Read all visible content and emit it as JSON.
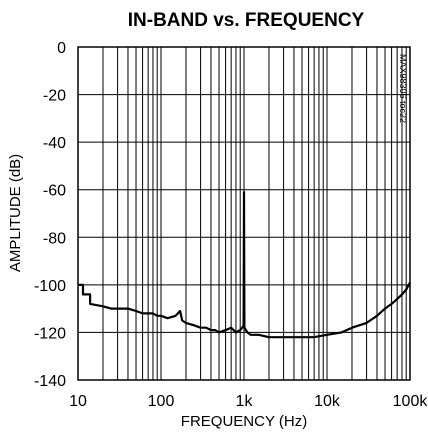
{
  "chart_data": {
    "type": "line",
    "title": "IN-BAND vs. FREQUENCY",
    "xlabel": "FREQUENCY (Hz)",
    "ylabel": "AMPLITUDE (dB)",
    "figure_id": "MAX98306 toc22",
    "xscale": "log",
    "xlim": [
      10,
      100000
    ],
    "ylim": [
      -140,
      0
    ],
    "grid": true,
    "xticks": [
      10,
      100,
      1000,
      10000,
      100000
    ],
    "xtick_labels": [
      "10",
      "100",
      "1k",
      "10k",
      "100k"
    ],
    "yticks": [
      0,
      -20,
      -40,
      -60,
      -80,
      -100,
      -120,
      -140
    ],
    "ytick_labels": [
      "0",
      "-20",
      "-40",
      "-60",
      "-80",
      "-100",
      "-120",
      "-140"
    ],
    "series": [
      {
        "color": "#000000",
        "x": [
          10,
          11.5,
          11.5,
          14,
          14,
          20,
          25,
          30,
          40,
          50,
          60,
          70,
          80,
          90,
          100,
          120,
          150,
          170,
          180,
          200,
          250,
          300,
          350,
          400,
          450,
          500,
          600,
          700,
          800,
          900,
          950,
          990,
          1000,
          1010,
          1050,
          1100,
          1200,
          1500,
          2000,
          3000,
          5000,
          7000,
          10000,
          15000,
          20000,
          30000,
          40000,
          50000,
          60000,
          70000,
          80000,
          90000,
          100000
        ],
        "y": [
          -100,
          -100,
          -104,
          -104,
          -108,
          -109,
          -110,
          -110,
          -110,
          -111,
          -112,
          -112,
          -112,
          -113,
          -113,
          -114,
          -113,
          -111,
          -115,
          -116,
          -117,
          -118,
          -118,
          -119,
          -119,
          -120,
          -119,
          -118,
          -120,
          -119,
          -118,
          -117,
          -61,
          -118,
          -119,
          -120,
          -121,
          -121,
          -122,
          -122,
          -122,
          -122,
          -121,
          -120,
          -118,
          -116,
          -113,
          -110,
          -108,
          -106,
          -104,
          -102,
          -99
        ]
      }
    ]
  }
}
